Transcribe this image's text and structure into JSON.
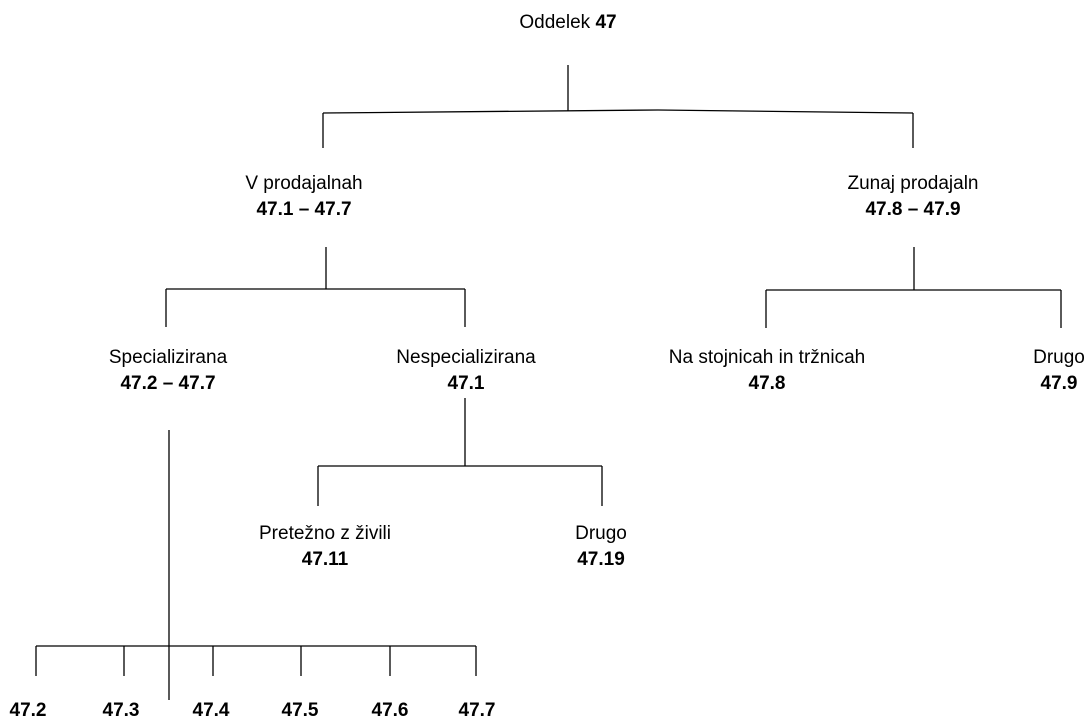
{
  "nodes": [
    {
      "label": "Oddelek",
      "code": "47"
    },
    {
      "label": "V prodajalnah",
      "code": "47.1 – 47.7"
    },
    {
      "label": "Zunaj prodajaln",
      "code": "47.8 – 47.9"
    },
    {
      "label": "Specializirana",
      "code": "47.2 – 47.7"
    },
    {
      "label": "Nespecializirana",
      "code": "47.1"
    },
    {
      "label": "Na stojnicah in tržnicah",
      "code": "47.8"
    },
    {
      "label": "Drugo",
      "code": "47.9"
    },
    {
      "label": "Pretežno z živili",
      "code": "47.11"
    },
    {
      "label": "Drugo",
      "code": "47.19"
    },
    {
      "code": "47.2"
    },
    {
      "code": "47.3"
    },
    {
      "code": "47.4"
    },
    {
      "code": "47.5"
    },
    {
      "code": "47.6"
    },
    {
      "code": "47.7"
    }
  ]
}
